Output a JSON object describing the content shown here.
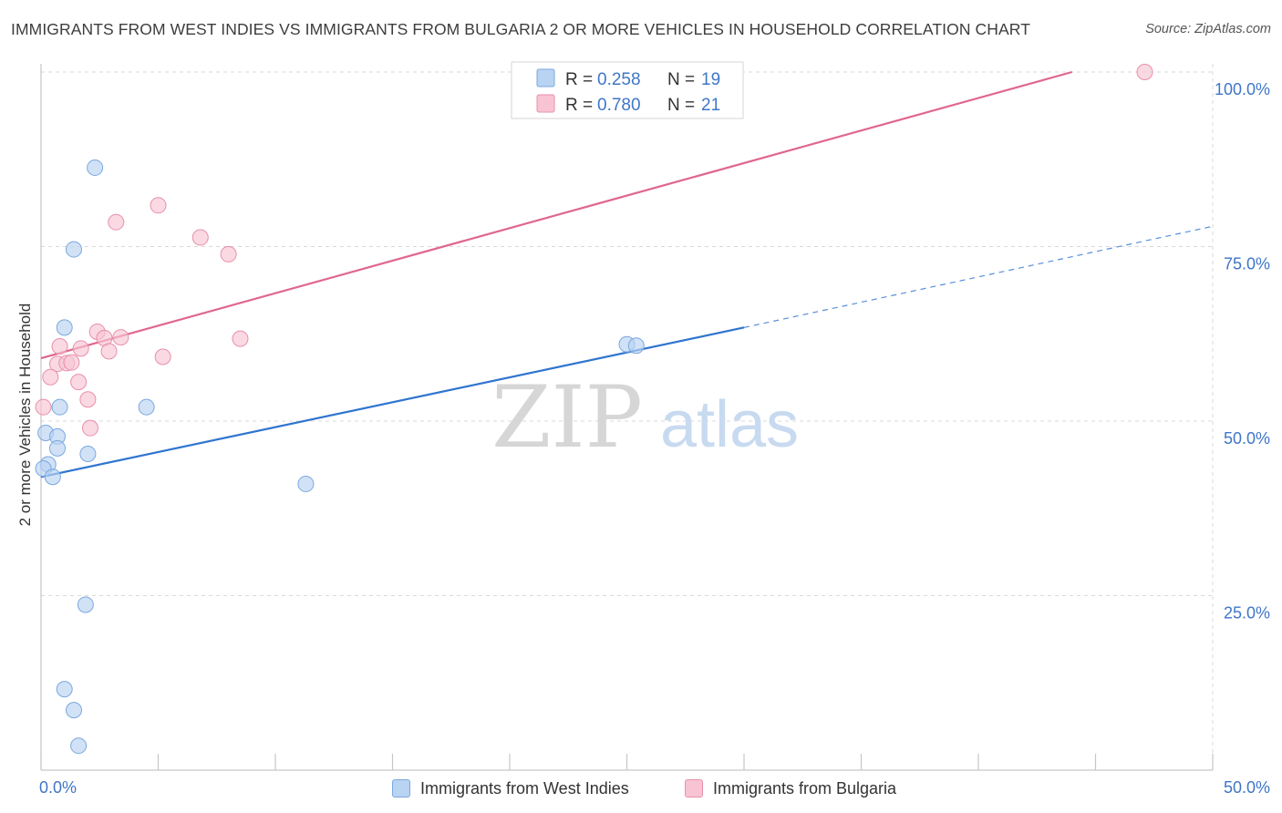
{
  "title": "IMMIGRANTS FROM WEST INDIES VS IMMIGRANTS FROM BULGARIA 2 OR MORE VEHICLES IN HOUSEHOLD CORRELATION CHART",
  "source": "Source: ZipAtlas.com",
  "watermark": {
    "zip": "ZIP",
    "atlas": "atlas"
  },
  "legend_top": [
    {
      "r_label": "R = ",
      "r_value": "0.258",
      "n_label": "N = ",
      "n_value": "19"
    },
    {
      "r_label": "R = ",
      "r_value": "0.780",
      "n_label": "N = ",
      "n_value": "21"
    }
  ],
  "legend_bottom": [
    "Immigrants from West Indies",
    "Immigrants from Bulgaria"
  ],
  "colors": {
    "blue_fill": "#b9d3f3",
    "blue_stroke": "#7aa8de",
    "blue_line": "#2f74d0",
    "pink_fill": "#f8c4d4",
    "pink_stroke": "#e98fab",
    "pink_line": "#e0668e",
    "axis_text": "#3f76c8",
    "grid": "#d9d9d9"
  },
  "chart_data": {
    "type": "scatter",
    "title": "IMMIGRANTS FROM WEST INDIES VS IMMIGRANTS FROM BULGARIA 2 OR MORE VEHICLES IN HOUSEHOLD CORRELATION CHART",
    "xlabel": "",
    "ylabel": "2 or more Vehicles in Household",
    "xlim": [
      0,
      50
    ],
    "ylim": [
      0,
      102
    ],
    "x_tick_labels": [
      "0.0%",
      "50.0%"
    ],
    "y_ticks": [
      25,
      50,
      75,
      100
    ],
    "y_tick_labels": [
      "25.0%",
      "50.0%",
      "75.0%",
      "100.0%"
    ],
    "grid": true,
    "series": [
      {
        "name": "Immigrants from West Indies",
        "R": 0.258,
        "N": 19,
        "points": [
          [
            2.3,
            86.3
          ],
          [
            1.4,
            74.6
          ],
          [
            1.0,
            63.4
          ],
          [
            0.8,
            52.0
          ],
          [
            4.5,
            52.0
          ],
          [
            0.2,
            48.3
          ],
          [
            0.7,
            47.8
          ],
          [
            0.7,
            46.1
          ],
          [
            2.0,
            45.3
          ],
          [
            0.3,
            43.8
          ],
          [
            0.1,
            43.2
          ],
          [
            0.5,
            42.0
          ],
          [
            11.3,
            41.0
          ],
          [
            25.0,
            61.0
          ],
          [
            25.4,
            60.8
          ],
          [
            1.9,
            23.7
          ],
          [
            1.0,
            11.6
          ],
          [
            1.4,
            8.6
          ],
          [
            1.6,
            3.5
          ]
        ],
        "trend": {
          "x": [
            0,
            30
          ],
          "y": [
            42.0,
            63.4
          ],
          "dashed_extension": {
            "x": [
              30,
              50
            ],
            "y": [
              63.4,
              77.9
            ]
          }
        }
      },
      {
        "name": "Immigrants from Bulgaria",
        "R": 0.78,
        "N": 21,
        "points": [
          [
            47.1,
            100.0
          ],
          [
            5.0,
            80.9
          ],
          [
            3.2,
            78.5
          ],
          [
            6.8,
            76.3
          ],
          [
            8.0,
            73.9
          ],
          [
            3.4,
            62.0
          ],
          [
            8.5,
            61.8
          ],
          [
            2.4,
            62.8
          ],
          [
            2.7,
            61.9
          ],
          [
            1.7,
            60.4
          ],
          [
            0.8,
            60.7
          ],
          [
            2.9,
            60.0
          ],
          [
            5.2,
            59.2
          ],
          [
            0.7,
            58.2
          ],
          [
            1.1,
            58.3
          ],
          [
            1.3,
            58.4
          ],
          [
            0.4,
            56.3
          ],
          [
            1.6,
            55.6
          ],
          [
            2.0,
            53.1
          ],
          [
            0.1,
            52.0
          ],
          [
            2.1,
            49.0
          ]
        ],
        "trend": {
          "x": [
            0,
            44
          ],
          "y": [
            59.0,
            100.0
          ]
        }
      }
    ]
  }
}
